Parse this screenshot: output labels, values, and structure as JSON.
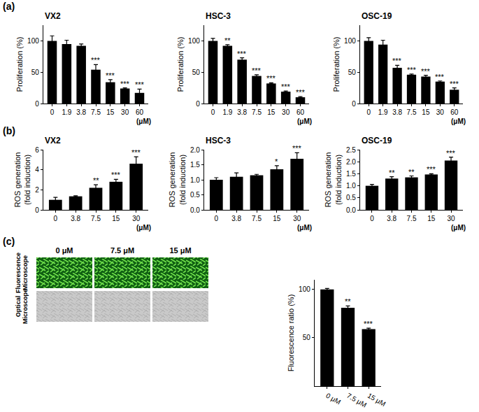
{
  "panel_labels": [
    "(a)",
    "(b)",
    "(c)"
  ],
  "image_panel": {
    "columns": [
      "0 μM",
      "7.5 μM",
      "15 μM"
    ],
    "rows": [
      "Fluorescence Microscope",
      "Optical Microscope"
    ]
  },
  "chart_data": [
    {
      "type": "bar",
      "title": "VX2",
      "x_label": "(μM)",
      "y_label": "Proliferation (%)",
      "categories": [
        "0",
        "1.9",
        "3.8",
        "7.5",
        "15",
        "30",
        "60"
      ],
      "values": [
        100,
        95,
        92,
        54,
        34,
        24,
        17
      ],
      "error": [
        8,
        6,
        3,
        8,
        4,
        1,
        6
      ],
      "significance": [
        null,
        null,
        null,
        "***",
        "***",
        "***",
        "***"
      ],
      "color": "#000000",
      "ylim": [
        0,
        125
      ],
      "yticks": [
        0,
        50,
        100
      ]
    },
    {
      "type": "bar",
      "title": "HSC-3",
      "x_label": "(μM)",
      "y_label": "Proliferation (%)",
      "categories": [
        "0",
        "1.9",
        "3.8",
        "7.5",
        "15",
        "30",
        "60"
      ],
      "values": [
        100,
        92,
        70,
        44,
        32,
        19,
        10
      ],
      "error": [
        4,
        2,
        3,
        2,
        1,
        1,
        1
      ],
      "significance": [
        null,
        "**",
        "***",
        "***",
        "***",
        "***",
        "***"
      ],
      "color": "#000000",
      "ylim": [
        0,
        125
      ],
      "yticks": [
        0,
        50,
        100
      ]
    },
    {
      "type": "bar",
      "title": "OSC-19",
      "x_label": "(μM)",
      "y_label": "Proliferation (%)",
      "categories": [
        "0",
        "1.9",
        "3.8",
        "7.5",
        "15",
        "30",
        "60"
      ],
      "values": [
        100,
        94,
        57,
        46,
        43,
        35,
        22
      ],
      "error": [
        5,
        7,
        4,
        1,
        2,
        1,
        3
      ],
      "significance": [
        null,
        null,
        "***",
        "***",
        "***",
        "***",
        "***"
      ],
      "color": "#000000",
      "ylim": [
        0,
        125
      ],
      "yticks": [
        0,
        50,
        100
      ]
    },
    {
      "type": "bar",
      "title": "VX2",
      "x_label": "(μM)",
      "y_label": "ROS generation\n(fold induction)",
      "categories": [
        "0",
        "3.8",
        "7.5",
        "15",
        "30"
      ],
      "values": [
        1.0,
        1.35,
        2.2,
        2.8,
        4.6
      ],
      "error": [
        0.25,
        0.05,
        0.3,
        0.25,
        0.7
      ],
      "significance": [
        null,
        null,
        "**",
        "***",
        "***"
      ],
      "color": "#000000",
      "ylim": [
        0,
        6
      ],
      "yticks": [
        0,
        2,
        4,
        6
      ]
    },
    {
      "type": "bar",
      "title": "HSC-3",
      "x_label": "(μM)",
      "y_label": "ROS generation\n(fold induction)",
      "categories": [
        "0",
        "3.8",
        "7.5",
        "15",
        "30"
      ],
      "values": [
        1.0,
        1.1,
        1.15,
        1.35,
        1.7
      ],
      "error": [
        0.07,
        0.13,
        0.03,
        0.12,
        0.2
      ],
      "significance": [
        null,
        null,
        null,
        "*",
        "***"
      ],
      "color": "#000000",
      "ylim": [
        0,
        2
      ],
      "yticks": [
        {
          "value": 0,
          "label": "0.0"
        },
        {
          "value": 0.5,
          "label": "0.5"
        },
        {
          "value": 1,
          "label": "1.0"
        },
        {
          "value": 1.5,
          "label": "1.5"
        },
        {
          "value": 2,
          "label": "2.0"
        }
      ]
    },
    {
      "type": "bar",
      "title": "OSC-19",
      "x_label": "(μM)",
      "y_label": "ROS generation\n(fold induction)",
      "categories": [
        "0",
        "3.8",
        "7.5",
        "15",
        "30"
      ],
      "values": [
        1.0,
        1.3,
        1.35,
        1.47,
        2.05
      ],
      "error": [
        0.06,
        0.08,
        0.06,
        0.03,
        0.14
      ],
      "significance": [
        null,
        "**",
        "**",
        "***",
        "***"
      ],
      "color": "#000000",
      "ylim": [
        0,
        2.5
      ],
      "yticks": [
        {
          "value": 0,
          "label": "0.0"
        },
        {
          "value": 0.5,
          "label": "0.5"
        },
        {
          "value": 1,
          "label": "1.0"
        },
        {
          "value": 1.5,
          "label": "1.5"
        },
        {
          "value": 2,
          "label": "2.0"
        },
        {
          "value": 2.5,
          "label": "2.5"
        }
      ]
    },
    {
      "type": "bar",
      "y_label": "Fluorescence ratio (%)",
      "categories": [
        "0 μM",
        "7.5 μM",
        "15 μM"
      ],
      "values": [
        100,
        81,
        59
      ],
      "error": [
        1,
        2,
        1
      ],
      "significance": [
        null,
        "**",
        "***"
      ],
      "color": "#000000",
      "ylim": [
        0,
        110
      ],
      "yticks": [
        50,
        100
      ]
    }
  ]
}
